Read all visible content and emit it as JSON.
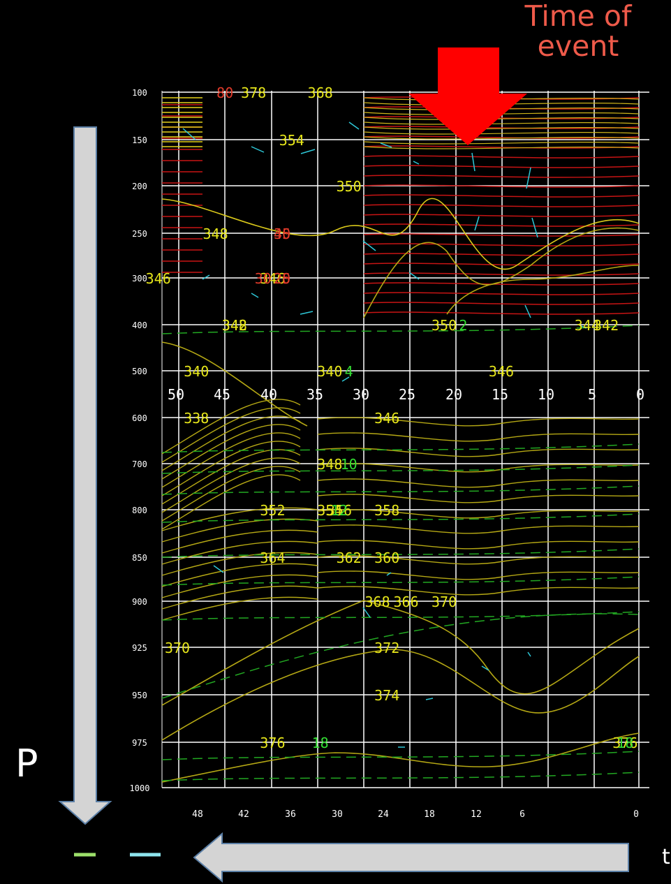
{
  "annotations": {
    "event_label_line1": "Time of",
    "event_label_line2": "event",
    "pressure_arrow_label": "P",
    "time_arrow_label": "t"
  },
  "colors": {
    "background": "#000000",
    "grid": "#ffffff",
    "theta_e_contour": "#b5a814",
    "theta_e_label": "#e6e61a",
    "wind_speed_contour": "#c81414",
    "wind_speed_label": "#e03a2a",
    "mixing_ratio_contour": "#22a822",
    "mixing_ratio_label": "#33dd33",
    "wind_vector": "#2ec8d8",
    "event_arrow": "#ff0000",
    "annotation_text": "#ee5a4a",
    "axis_arrow_fill": "#d4d4d4",
    "legend_green": "#9de06b",
    "legend_cyan": "#8ee5ee"
  },
  "chart_data": {
    "type": "contour",
    "x_axis": {
      "ticks": [
        "48",
        "42",
        "36",
        "30",
        "24",
        "18",
        "12",
        "6",
        "0"
      ],
      "range": [
        48,
        0
      ],
      "direction": "time decreasing to the right (hours before event)"
    },
    "y_axis": {
      "ticks": [
        "100",
        "150",
        "200",
        "250",
        "300",
        "400",
        "500",
        "600",
        "700",
        "800",
        "850",
        "900",
        "925",
        "950",
        "975",
        "1000"
      ],
      "range": [
        100,
        1000
      ],
      "direction": "pressure increasing downward"
    },
    "mid_axis_ticks": [
      "50",
      "45",
      "40",
      "35",
      "30",
      "25",
      "20",
      "15",
      "10",
      "5",
      "0"
    ],
    "event_time": 18,
    "grid": true,
    "theta_e_labels": [
      {
        "text": "378",
        "x": 40,
        "p": 100
      },
      {
        "text": "368",
        "x": 33,
        "p": 100
      },
      {
        "text": "354",
        "x": 36,
        "p": 150
      },
      {
        "text": "350",
        "x": 30,
        "p": 200
      },
      {
        "text": "348",
        "x": 44,
        "p": 250
      },
      {
        "text": "346",
        "x": 50,
        "p": 300
      },
      {
        "text": "346",
        "x": 38,
        "p": 300
      },
      {
        "text": "350",
        "x": 20,
        "p": 400
      },
      {
        "text": "344",
        "x": 5,
        "p": 400
      },
      {
        "text": "342",
        "x": 3,
        "p": 400
      },
      {
        "text": "348",
        "x": 42,
        "p": 400
      },
      {
        "text": "342",
        "x": 42,
        "p": 400
      },
      {
        "text": "346",
        "x": 14,
        "p": 500
      },
      {
        "text": "340",
        "x": 32,
        "p": 500
      },
      {
        "text": "340",
        "x": 46,
        "p": 500
      },
      {
        "text": "338",
        "x": 46,
        "p": 600
      },
      {
        "text": "346",
        "x": 26,
        "p": 600
      },
      {
        "text": "348",
        "x": 32,
        "p": 700
      },
      {
        "text": "352",
        "x": 38,
        "p": 800
      },
      {
        "text": "354",
        "x": 32,
        "p": 800
      },
      {
        "text": "356",
        "x": 31,
        "p": 800
      },
      {
        "text": "358",
        "x": 26,
        "p": 800
      },
      {
        "text": "360",
        "x": 26,
        "p": 850
      },
      {
        "text": "362",
        "x": 30,
        "p": 850
      },
      {
        "text": "364",
        "x": 38,
        "p": 850
      },
      {
        "text": "368",
        "x": 27,
        "p": 900
      },
      {
        "text": "366",
        "x": 24,
        "p": 900
      },
      {
        "text": "370",
        "x": 20,
        "p": 900
      },
      {
        "text": "370",
        "x": 48,
        "p": 925
      },
      {
        "text": "372",
        "x": 26,
        "p": 925
      },
      {
        "text": "374",
        "x": 26,
        "p": 950
      },
      {
        "text": "376",
        "x": 38,
        "p": 975
      },
      {
        "text": "376",
        "x": 1,
        "p": 975
      }
    ],
    "wind_speed_labels": [
      {
        "text": "80",
        "x": 43,
        "p": 100
      },
      {
        "text": "40",
        "x": 37,
        "p": 250
      },
      {
        "text": "35",
        "x": 37,
        "p": 250
      },
      {
        "text": "30",
        "x": 39,
        "p": 300
      },
      {
        "text": "25",
        "x": 37,
        "p": 300
      },
      {
        "text": "20",
        "x": 37,
        "p": 300
      }
    ],
    "mixing_ratio_labels": [
      {
        "text": "2",
        "x": 18,
        "p": 400
      },
      {
        "text": "4",
        "x": 30,
        "p": 500
      },
      {
        "text": "10",
        "x": 30,
        "p": 700
      },
      {
        "text": "12",
        "x": 31,
        "p": 800
      },
      {
        "text": "18",
        "x": 33,
        "p": 975
      },
      {
        "text": "18",
        "x": 1,
        "p": 975
      }
    ]
  }
}
